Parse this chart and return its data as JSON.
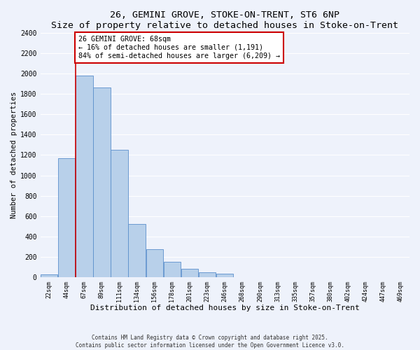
{
  "title": "26, GEMINI GROVE, STOKE-ON-TRENT, ST6 6NP",
  "subtitle": "Size of property relative to detached houses in Stoke-on-Trent",
  "xlabel": "Distribution of detached houses by size in Stoke-on-Trent",
  "ylabel": "Number of detached properties",
  "categories": [
    "22sqm",
    "44sqm",
    "67sqm",
    "89sqm",
    "111sqm",
    "134sqm",
    "156sqm",
    "178sqm",
    "201sqm",
    "223sqm",
    "246sqm",
    "268sqm",
    "290sqm",
    "313sqm",
    "335sqm",
    "357sqm",
    "380sqm",
    "402sqm",
    "424sqm",
    "447sqm",
    "469sqm"
  ],
  "values": [
    30,
    1170,
    1980,
    1860,
    1250,
    520,
    275,
    150,
    85,
    45,
    35,
    0,
    0,
    0,
    0,
    0,
    0,
    0,
    0,
    0,
    0
  ],
  "bar_color": "#b8d0ea",
  "bar_edge_color": "#5b8fcc",
  "vline_color": "#cc0000",
  "vline_x_index": 2,
  "annotation_text": "26 GEMINI GROVE: 68sqm\n← 16% of detached houses are smaller (1,191)\n84% of semi-detached houses are larger (6,209) →",
  "annotation_box_color": "#ffffff",
  "annotation_box_edge_color": "#cc0000",
  "ylim": [
    0,
    2400
  ],
  "yticks": [
    0,
    200,
    400,
    600,
    800,
    1000,
    1200,
    1400,
    1600,
    1800,
    2000,
    2200,
    2400
  ],
  "background_color": "#eef2fb",
  "grid_color": "#ffffff",
  "footer_line1": "Contains HM Land Registry data © Crown copyright and database right 2025.",
  "footer_line2": "Contains public sector information licensed under the Open Government Licence v3.0."
}
